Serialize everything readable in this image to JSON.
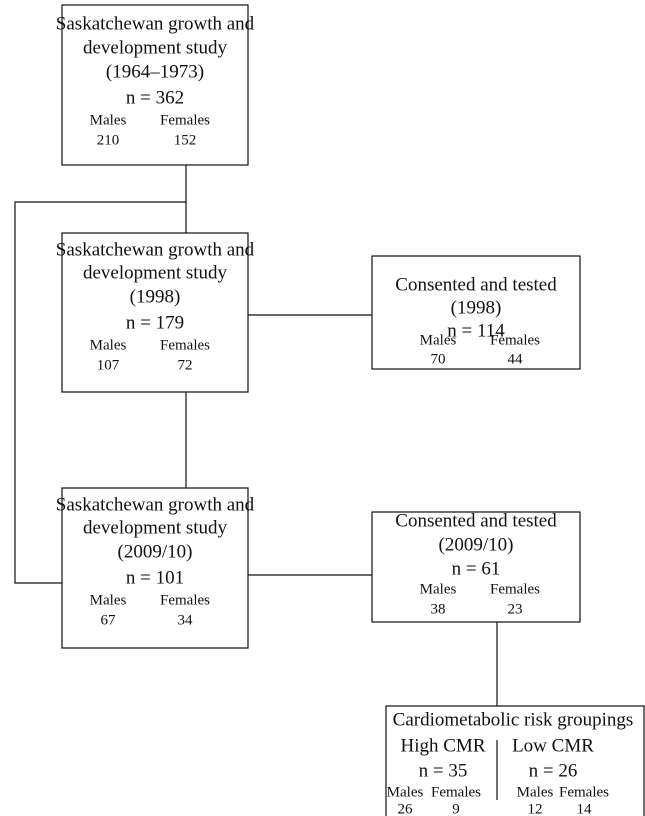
{
  "nodes": [
    {
      "title_lines": [
        "Saskatchewan growth and",
        "development study",
        "(1964–1973)"
      ],
      "n": "n = 362",
      "groups": [
        {
          "label": "Males",
          "count": "210"
        },
        {
          "label": "Females",
          "count": "152"
        }
      ]
    },
    {
      "title_lines": [
        "Saskatchewan growth and",
        "development study",
        "(1998)"
      ],
      "n": "n = 179",
      "groups": [
        {
          "label": "Males",
          "count": "107"
        },
        {
          "label": "Females",
          "count": "72"
        }
      ]
    },
    {
      "title_lines": [
        "Consented and tested",
        "(1998)"
      ],
      "n": "n = 114",
      "groups": [
        {
          "label": "Males",
          "count": "70"
        },
        {
          "label": "Females",
          "count": "44"
        }
      ]
    },
    {
      "title_lines": [
        "Saskatchewan growth and",
        "development study",
        "(2009/10)"
      ],
      "n": "n = 101",
      "groups": [
        {
          "label": "Males",
          "count": "67"
        },
        {
          "label": "Females",
          "count": "34"
        }
      ]
    },
    {
      "title_lines": [
        "Consented and tested",
        "(2009/10)"
      ],
      "n": "n = 61",
      "groups": [
        {
          "label": "Males",
          "count": "38"
        },
        {
          "label": "Females",
          "count": "23"
        }
      ]
    }
  ],
  "risk_groupings": {
    "title": "Cardiometabolic risk groupings",
    "subgroups": [
      {
        "name": "High CMR",
        "n": "n = 35",
        "groups": [
          {
            "label": "Males",
            "count": "26"
          },
          {
            "label": "Females",
            "count": "9"
          }
        ]
      },
      {
        "name": "Low CMR",
        "n": "n = 26",
        "groups": [
          {
            "label": "Males",
            "count": "12"
          },
          {
            "label": "Females",
            "count": "14"
          }
        ]
      }
    ]
  }
}
